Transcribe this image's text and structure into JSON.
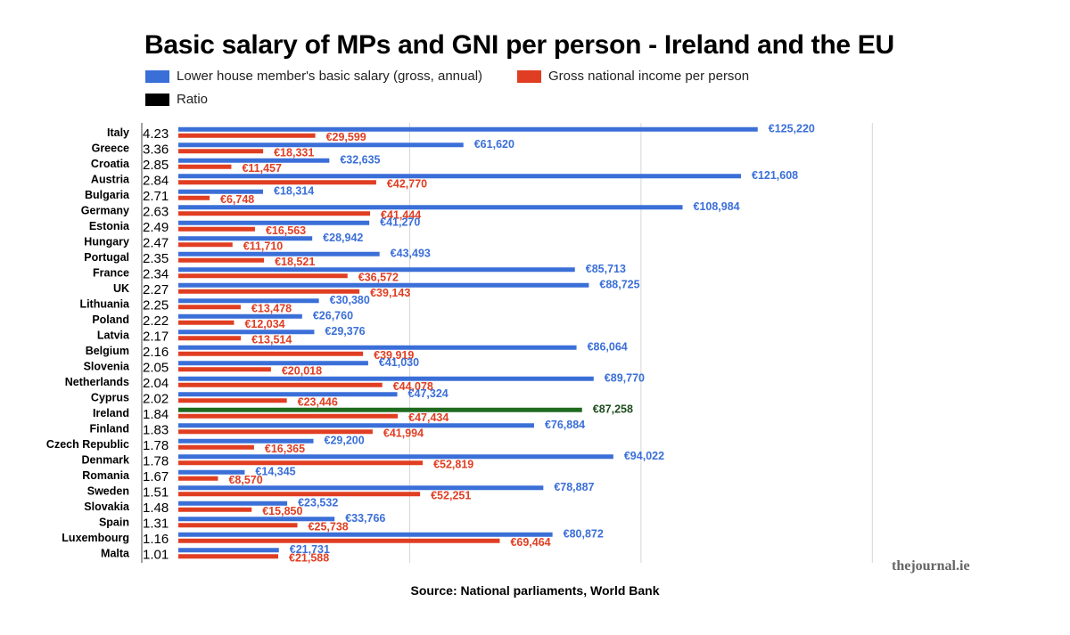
{
  "title": "Basic salary of MPs and GNI per person - Ireland and the EU",
  "source": "Source: National parliaments, World Bank",
  "watermark": "thejournal.ie",
  "legend": [
    {
      "label": "Lower house member's basic salary (gross, annual)",
      "color": "#3b6fd8"
    },
    {
      "label": "Gross national income per person",
      "color": "#e03e22"
    },
    {
      "label": "Ratio",
      "color": "#000000"
    }
  ],
  "colors": {
    "salary": "#3b6fd8",
    "gni": "#e03e22",
    "ireland_salary": "#1f6a1f",
    "ireland_label": "#1f4d1f",
    "grid": "#d6d6d6"
  },
  "chart_data": {
    "type": "bar",
    "orientation": "horizontal",
    "xlim": [
      0,
      180000
    ],
    "grid": true,
    "categories": [
      "Italy",
      "Greece",
      "Croatia",
      "Austria",
      "Bulgaria",
      "Germany",
      "Estonia",
      "Hungary",
      "Portugal",
      "France",
      "UK",
      "Lithuania",
      "Poland",
      "Latvia",
      "Belgium",
      "Slovenia",
      "Netherlands",
      "Cyprus",
      "Ireland",
      "Finland",
      "Czech Republic",
      "Denmark",
      "Romania",
      "Sweden",
      "Slovakia",
      "Spain",
      "Luxembourg",
      "Malta"
    ],
    "ratios": [
      "4.23",
      "3.36",
      "2.85",
      "2.84",
      "2.71",
      "2.63",
      "2.49",
      "2.47",
      "2.35",
      "2.34",
      "2.27",
      "2.25",
      "2.22",
      "2.17",
      "2.16",
      "2.05",
      "2.04",
      "2.02",
      "1.84",
      "1.83",
      "1.78",
      "1.78",
      "1.67",
      "1.51",
      "1.48",
      "1.31",
      "1.16",
      "1.01"
    ],
    "series": [
      {
        "name": "Lower house member's basic salary (gross, annual)",
        "values": [
          125220,
          61620,
          32635,
          121608,
          18314,
          108984,
          41270,
          28942,
          43493,
          85713,
          88725,
          30380,
          26760,
          29376,
          86064,
          41030,
          89770,
          47324,
          87258,
          76884,
          29200,
          94022,
          14345,
          78887,
          23532,
          33766,
          80872,
          21731
        ],
        "labels": [
          "€125,220",
          "€61,620",
          "€32,635",
          "€121,608",
          "€18,314",
          "€108,984",
          "€41,270",
          "€28,942",
          "€43,493",
          "€85,713",
          "€88,725",
          "€30,380",
          "€26,760",
          "€29,376",
          "€86,064",
          "€41,030",
          "€89,770",
          "€47,324",
          "€87,258",
          "€76,884",
          "€29,200",
          "€94,022",
          "€14,345",
          "€78,887",
          "€23,532",
          "€33,766",
          "€80,872",
          "€21,731"
        ]
      },
      {
        "name": "Gross national income per person",
        "values": [
          29599,
          18331,
          11457,
          42770,
          6748,
          41444,
          16563,
          11710,
          18521,
          36572,
          39143,
          13478,
          12034,
          13514,
          39919,
          20018,
          44078,
          23446,
          47434,
          41994,
          16365,
          52819,
          8570,
          52251,
          15850,
          25738,
          69464,
          21588
        ],
        "labels": [
          "€29,599",
          "€18,331",
          "€11,457",
          "€42,770",
          "€6,748",
          "€41,444",
          "€16,563",
          "€11,710",
          "€18,521",
          "€36,572",
          "€39,143",
          "€13,478",
          "€12,034",
          "€13,514",
          "€39,919",
          "€20,018",
          "€44,078",
          "€23,446",
          "€47,434",
          "€41,994",
          "€16,365",
          "€52,819",
          "€8,570",
          "€52,251",
          "€15,850",
          "€25,738",
          "€69,464",
          "€21,588"
        ]
      }
    ],
    "highlight": "Ireland"
  }
}
